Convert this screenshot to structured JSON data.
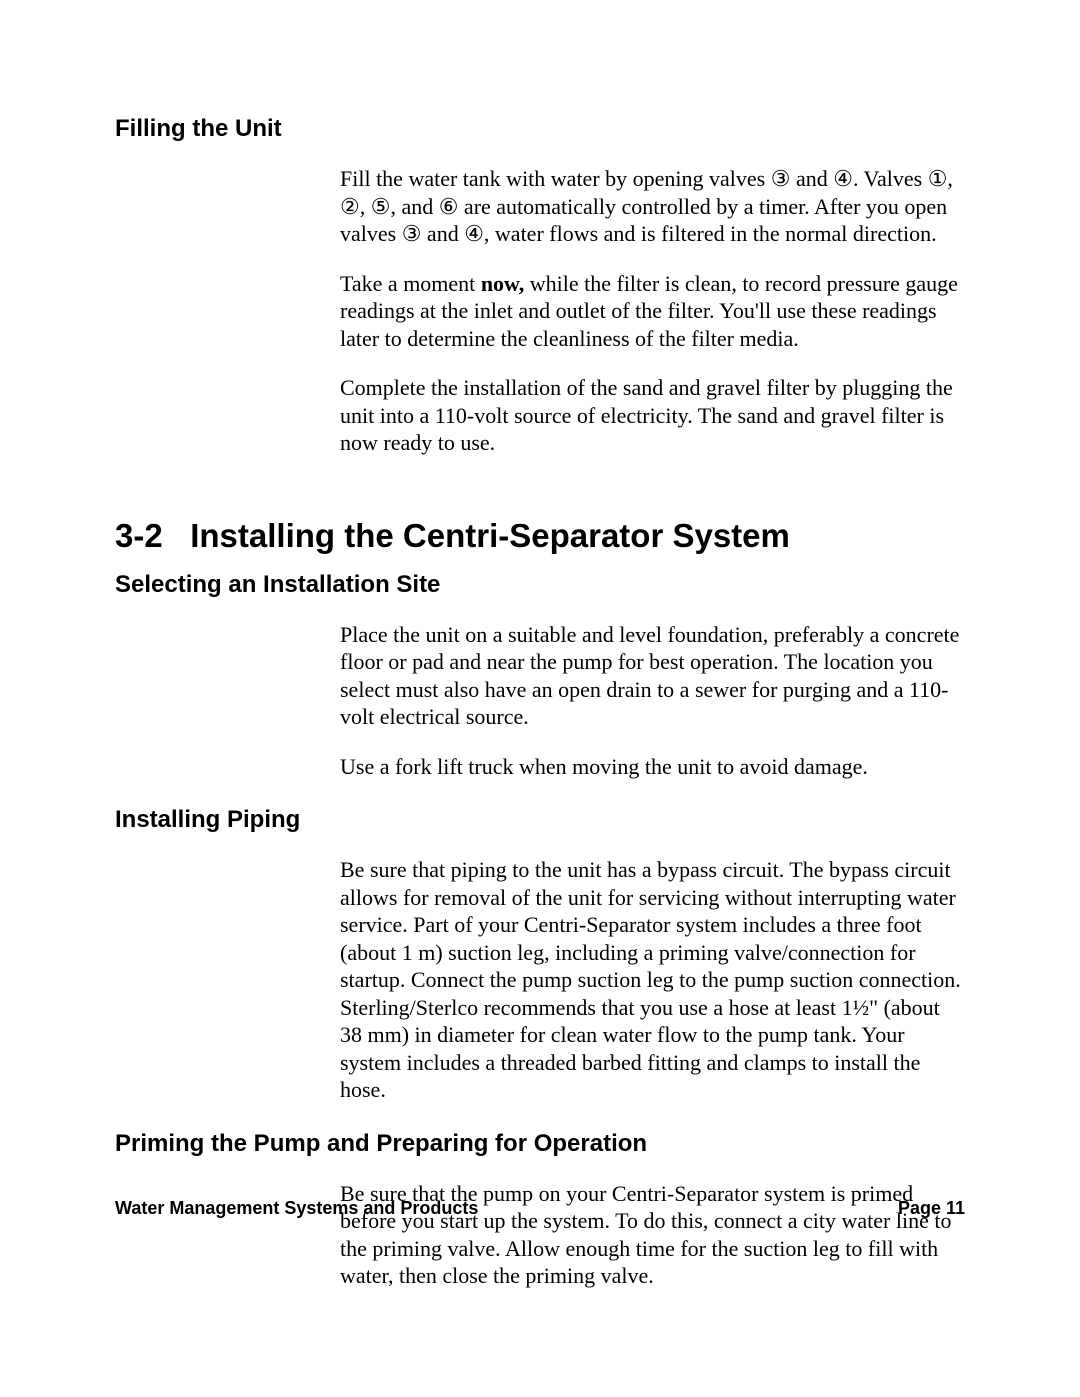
{
  "sections": {
    "filling": {
      "heading": "Filling the Unit",
      "p1": "Fill the water tank with water by opening valves ③ and ④. Valves ①, ②, ⑤, and ⑥ are automatically controlled by a timer. After you open valves ③ and ④, water flows and is filtered in the normal direction.",
      "p2_pre": "Take a moment ",
      "p2_bold": "now,",
      "p2_post": " while the filter is clean, to record pressure gauge readings at the inlet and outlet of the filter. You'll use these readings later to determine the cleanliness of the filter media.",
      "p3": "Complete the installation of the sand and gravel filter by plugging the unit into a 110-volt source of electricity. The sand and gravel filter is now ready to use."
    },
    "main": {
      "number": "3-2",
      "title": "Installing the Centri-Separator System"
    },
    "site": {
      "heading": "Selecting an Installation Site",
      "p1": "Place the unit on a suitable and level foundation, preferably a concrete floor or pad and near the pump for best operation. The location you select must also have an open drain to a sewer for purging and a 110-volt electrical source.",
      "p2": "Use a fork lift truck when moving the unit to avoid damage."
    },
    "piping": {
      "heading": "Installing Piping",
      "p1": "Be sure that piping to the unit has a bypass circuit. The bypass circuit allows for removal of the unit for servicing without interrupting water service. Part of your Centri-Separator system includes a three foot (about 1 m) suction leg, including a priming valve/connection for startup. Connect the pump suction leg to the pump suction connection. Sterling/Sterlco recommends that you use a hose at least 1½\" (about 38 mm) in diameter for clean water flow to the pump tank. Your system includes a threaded barbed fitting and clamps to install the hose."
    },
    "priming": {
      "heading": "Priming the Pump and Preparing for Operation",
      "p1": "Be sure that the pump on your Centri-Separator system is primed before you start up the system. To do this, connect a city water line to the priming valve. Allow enough time for the suction leg to fill with water, then close the priming valve."
    }
  },
  "footer": {
    "left": "Water Management Systems and Products",
    "right": "Page 11"
  }
}
